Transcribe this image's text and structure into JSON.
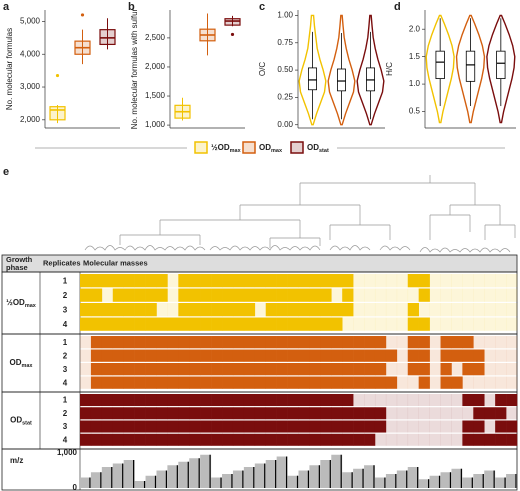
{
  "chart_data": [
    {
      "type": "box",
      "label": "a",
      "ylabel": "No. molecular formulas",
      "ylim": [
        1750,
        5350
      ],
      "yticks": [
        {
          "value": 2000,
          "label": "2,000"
        },
        {
          "value": 3000,
          "label": "3,000"
        },
        {
          "value": 4000,
          "label": "4,000"
        },
        {
          "value": 5000,
          "label": "5,000"
        }
      ],
      "series": [
        {
          "color": "#f2c200",
          "whisker_low": 1900,
          "q1": 2000,
          "median": 2300,
          "q3": 2400,
          "whisker_high": 2450,
          "outliers": [
            3350
          ]
        },
        {
          "color": "#d35f0f",
          "whisker_low": 3700,
          "q1": 4000,
          "median": 4200,
          "q3": 4400,
          "whisker_high": 4750,
          "outliers": [
            5200
          ]
        },
        {
          "color": "#7a0d0d",
          "whisker_low": 4150,
          "q1": 4300,
          "median": 4500,
          "q3": 4750,
          "whisker_high": 5100,
          "outliers": []
        }
      ]
    },
    {
      "type": "box",
      "label": "b",
      "ylabel": "No. molecular formulas with sulfur",
      "ylim": [
        950,
        2980
      ],
      "yticks": [
        {
          "value": 1000,
          "label": "1,000"
        },
        {
          "value": 1500,
          "label": "1,500"
        },
        {
          "value": 2000,
          "label": "2,000"
        },
        {
          "value": 2500,
          "label": "2,500"
        }
      ],
      "series": [
        {
          "color": "#f2c200",
          "whisker_low": 1080,
          "q1": 1120,
          "median": 1230,
          "q3": 1340,
          "whisker_high": 1470,
          "outliers": []
        },
        {
          "color": "#d35f0f",
          "whisker_low": 2200,
          "q1": 2450,
          "median": 2550,
          "q3": 2650,
          "whisker_high": 2920,
          "outliers": []
        },
        {
          "color": "#7a0d0d",
          "whisker_low": 2700,
          "q1": 2720,
          "median": 2790,
          "q3": 2830,
          "whisker_high": 2880,
          "outliers": [
            2560
          ]
        }
      ]
    },
    {
      "type": "violin",
      "label": "c",
      "ylabel": "O/C",
      "ylim": [
        -0.03,
        1.05
      ],
      "yticks": [
        {
          "value": 0,
          "label": "0.00"
        },
        {
          "value": 0.25,
          "label": "0.25"
        },
        {
          "value": 0.5,
          "label": "0.50"
        },
        {
          "value": 0.75,
          "label": "0.75"
        },
        {
          "value": 1,
          "label": "1.00"
        }
      ],
      "density_y": [
        0,
        0.1,
        0.2,
        0.3,
        0.4,
        0.5,
        0.6,
        0.7,
        0.8,
        0.9,
        1.0
      ],
      "series": [
        {
          "color": "#f2c200",
          "density": [
            0.05,
            0.3,
            0.6,
            0.9,
            1.0,
            0.8,
            0.55,
            0.35,
            0.25,
            0.15,
            0.08
          ],
          "whisker_low": 0.05,
          "q1": 0.32,
          "median": 0.41,
          "q3": 0.52,
          "whisker_high": 0.85
        },
        {
          "color": "#d35f0f",
          "density": [
            0.05,
            0.3,
            0.6,
            0.9,
            1.0,
            0.8,
            0.55,
            0.35,
            0.2,
            0.12,
            0.05
          ],
          "whisker_low": 0.05,
          "q1": 0.31,
          "median": 0.4,
          "q3": 0.51,
          "whisker_high": 0.84
        },
        {
          "color": "#7a0d0d",
          "density": [
            0.05,
            0.3,
            0.6,
            0.9,
            1.0,
            0.8,
            0.55,
            0.35,
            0.2,
            0.12,
            0.05
          ],
          "whisker_low": 0.05,
          "q1": 0.31,
          "median": 0.41,
          "q3": 0.52,
          "whisker_high": 0.85
        }
      ]
    },
    {
      "type": "violin",
      "label": "d",
      "ylabel": "H/C",
      "ylim": [
        0.2,
        2.35
      ],
      "yticks": [
        0.5,
        {
          "value": 1,
          "label": "1.0"
        },
        1.5,
        {
          "value": 2,
          "label": "2.0"
        }
      ],
      "density_y": [
        0.3,
        0.5,
        0.7,
        0.9,
        1.1,
        1.3,
        1.5,
        1.7,
        1.9,
        2.1,
        2.25
      ],
      "series": [
        {
          "color": "#f2c200",
          "density": [
            0.05,
            0.2,
            0.4,
            0.6,
            0.8,
            0.95,
            1.0,
            0.85,
            0.6,
            0.3,
            0.05
          ],
          "whisker_low": 0.6,
          "q1": 1.1,
          "median": 1.4,
          "q3": 1.6,
          "whisker_high": 2.2
        },
        {
          "color": "#d35f0f",
          "density": [
            0.05,
            0.2,
            0.4,
            0.6,
            0.8,
            0.95,
            1.0,
            0.85,
            0.6,
            0.3,
            0.05
          ],
          "whisker_low": 0.6,
          "q1": 1.05,
          "median": 1.35,
          "q3": 1.6,
          "whisker_high": 2.2
        },
        {
          "color": "#7a0d0d",
          "density": [
            0.05,
            0.2,
            0.4,
            0.6,
            0.8,
            0.95,
            1.0,
            0.85,
            0.6,
            0.3,
            0.05
          ],
          "whisker_low": 0.6,
          "q1": 1.1,
          "median": 1.38,
          "q3": 1.6,
          "whisker_high": 2.2
        }
      ]
    },
    {
      "type": "heatmap",
      "label": "e",
      "header": [
        "Growth phase",
        "Replicates",
        "Molecular masses"
      ],
      "groups": [
        {
          "name": "½OD",
          "subscript": "max",
          "color": "#f2c200",
          "replicates": [
            "1",
            "2",
            "3",
            "4"
          ],
          "presence": [
            [
              1,
              1,
              1,
              1,
              1,
              1,
              1,
              1,
              0,
              1,
              1,
              1,
              1,
              1,
              1,
              1,
              1,
              1,
              1,
              1,
              1,
              1,
              1,
              1,
              1,
              0,
              0,
              0,
              0,
              0,
              1,
              1,
              0,
              0,
              0,
              0,
              0,
              0,
              0,
              0
            ],
            [
              1,
              1,
              0,
              1,
              1,
              1,
              1,
              1,
              0,
              1,
              1,
              1,
              1,
              1,
              1,
              1,
              1,
              1,
              1,
              1,
              1,
              1,
              1,
              0,
              1,
              0,
              0,
              0,
              0,
              0,
              0,
              1,
              0,
              0,
              0,
              0,
              0,
              0,
              0,
              0
            ],
            [
              1,
              1,
              1,
              1,
              1,
              1,
              1,
              0,
              0,
              1,
              1,
              1,
              1,
              1,
              1,
              1,
              0,
              1,
              1,
              1,
              1,
              1,
              1,
              1,
              1,
              0,
              0,
              0,
              0,
              0,
              1,
              0,
              0,
              0,
              0,
              0,
              0,
              0,
              0,
              0
            ],
            [
              1,
              1,
              1,
              1,
              1,
              1,
              1,
              1,
              1,
              1,
              1,
              1,
              1,
              1,
              1,
              1,
              1,
              1,
              1,
              1,
              1,
              1,
              1,
              1,
              0,
              0,
              0,
              0,
              0,
              0,
              1,
              1,
              0,
              0,
              0,
              0,
              0,
              0,
              0,
              0
            ]
          ]
        },
        {
          "name": "OD",
          "subscript": "max",
          "color": "#d35f0f",
          "replicates": [
            "1",
            "2",
            "3",
            "4"
          ],
          "presence": [
            [
              0,
              1,
              1,
              1,
              1,
              1,
              1,
              1,
              1,
              1,
              1,
              1,
              1,
              1,
              1,
              1,
              1,
              1,
              1,
              1,
              1,
              1,
              1,
              1,
              1,
              1,
              1,
              1,
              0,
              0,
              1,
              1,
              0,
              1,
              1,
              1,
              0,
              0,
              0,
              0
            ],
            [
              0,
              1,
              1,
              1,
              1,
              1,
              1,
              1,
              1,
              1,
              1,
              1,
              1,
              1,
              1,
              1,
              1,
              1,
              1,
              1,
              1,
              1,
              1,
              1,
              1,
              1,
              1,
              1,
              1,
              0,
              1,
              1,
              0,
              1,
              1,
              1,
              1,
              0,
              0,
              0
            ],
            [
              0,
              1,
              1,
              1,
              1,
              1,
              1,
              1,
              1,
              1,
              1,
              1,
              1,
              1,
              1,
              1,
              1,
              1,
              1,
              1,
              1,
              1,
              1,
              1,
              1,
              1,
              1,
              1,
              0,
              0,
              1,
              1,
              0,
              1,
              0,
              1,
              1,
              0,
              0,
              0
            ],
            [
              0,
              1,
              1,
              1,
              1,
              1,
              1,
              1,
              1,
              1,
              1,
              1,
              1,
              1,
              1,
              1,
              1,
              1,
              1,
              1,
              1,
              1,
              1,
              1,
              1,
              1,
              1,
              1,
              1,
              0,
              0,
              1,
              0,
              1,
              1,
              0,
              0,
              0,
              0,
              0
            ]
          ]
        },
        {
          "name": "OD",
          "subscript": "stat",
          "color": "#7a0d0d",
          "replicates": [
            "1",
            "2",
            "3",
            "4"
          ],
          "presence": [
            [
              1,
              1,
              1,
              1,
              1,
              1,
              1,
              1,
              1,
              1,
              1,
              1,
              1,
              1,
              1,
              1,
              1,
              1,
              1,
              1,
              1,
              1,
              1,
              1,
              1,
              0,
              0,
              0,
              0,
              0,
              0,
              0,
              0,
              0,
              0,
              1,
              1,
              0,
              1,
              1
            ],
            [
              1,
              1,
              1,
              1,
              1,
              1,
              1,
              1,
              1,
              1,
              1,
              1,
              1,
              1,
              1,
              1,
              1,
              1,
              1,
              1,
              1,
              1,
              1,
              1,
              1,
              1,
              1,
              1,
              0,
              0,
              0,
              0,
              0,
              0,
              0,
              0,
              1,
              1,
              1,
              0
            ],
            [
              1,
              1,
              1,
              1,
              1,
              1,
              1,
              1,
              1,
              1,
              1,
              1,
              1,
              1,
              1,
              1,
              1,
              1,
              1,
              1,
              1,
              1,
              1,
              1,
              1,
              1,
              1,
              1,
              0,
              0,
              0,
              0,
              0,
              0,
              0,
              1,
              1,
              0,
              1,
              1
            ],
            [
              1,
              1,
              1,
              1,
              1,
              1,
              1,
              1,
              1,
              1,
              1,
              1,
              1,
              1,
              1,
              1,
              1,
              1,
              1,
              1,
              1,
              1,
              1,
              1,
              1,
              1,
              1,
              0,
              0,
              0,
              0,
              0,
              0,
              0,
              0,
              1,
              1,
              1,
              1,
              1
            ]
          ]
        }
      ],
      "mz": {
        "label": "m/z",
        "ylim": [
          0,
          1000
        ],
        "yticks": [
          {
            "value": 1000,
            "label": "1,000"
          },
          0
        ],
        "values": [
          300,
          450,
          600,
          700,
          800,
          200,
          350,
          500,
          650,
          750,
          850,
          950,
          300,
          400,
          500,
          600,
          700,
          800,
          900,
          350,
          500,
          650,
          800,
          950,
          450,
          550,
          650,
          300,
          400,
          500,
          600,
          250,
          350,
          450,
          550,
          300,
          400,
          500,
          300,
          400
        ]
      }
    }
  ],
  "legend": [
    {
      "name": "½OD",
      "subscript": "max",
      "color": "#f2c200"
    },
    {
      "name": "OD",
      "subscript": "max",
      "color": "#d35f0f"
    },
    {
      "name": "OD",
      "subscript": "stat",
      "color": "#7a0d0d"
    }
  ]
}
